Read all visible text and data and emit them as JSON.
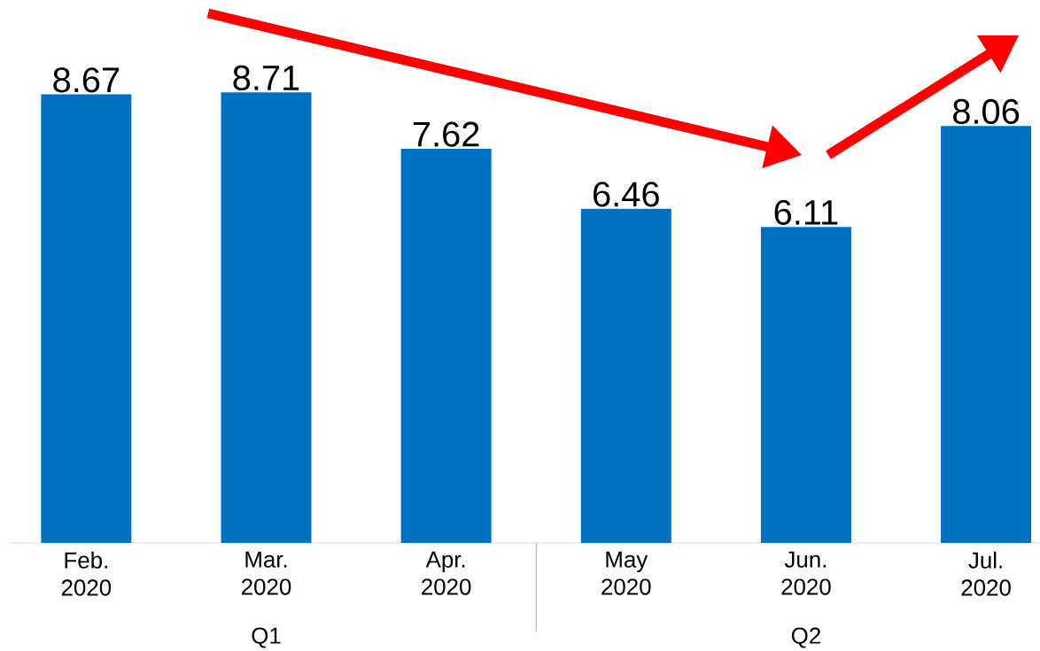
{
  "chart_data": {
    "type": "bar",
    "categories": [
      "Feb. 2020",
      "Mar. 2020",
      "Apr. 2020",
      "May 2020",
      "Jun. 2020",
      "Jul. 2020"
    ],
    "values": [
      8.67,
      8.71,
      7.62,
      6.46,
      6.11,
      8.06
    ],
    "color": "#0070c0",
    "data_labels": true,
    "annotations": [
      "Q1",
      "Q2"
    ]
  }
}
